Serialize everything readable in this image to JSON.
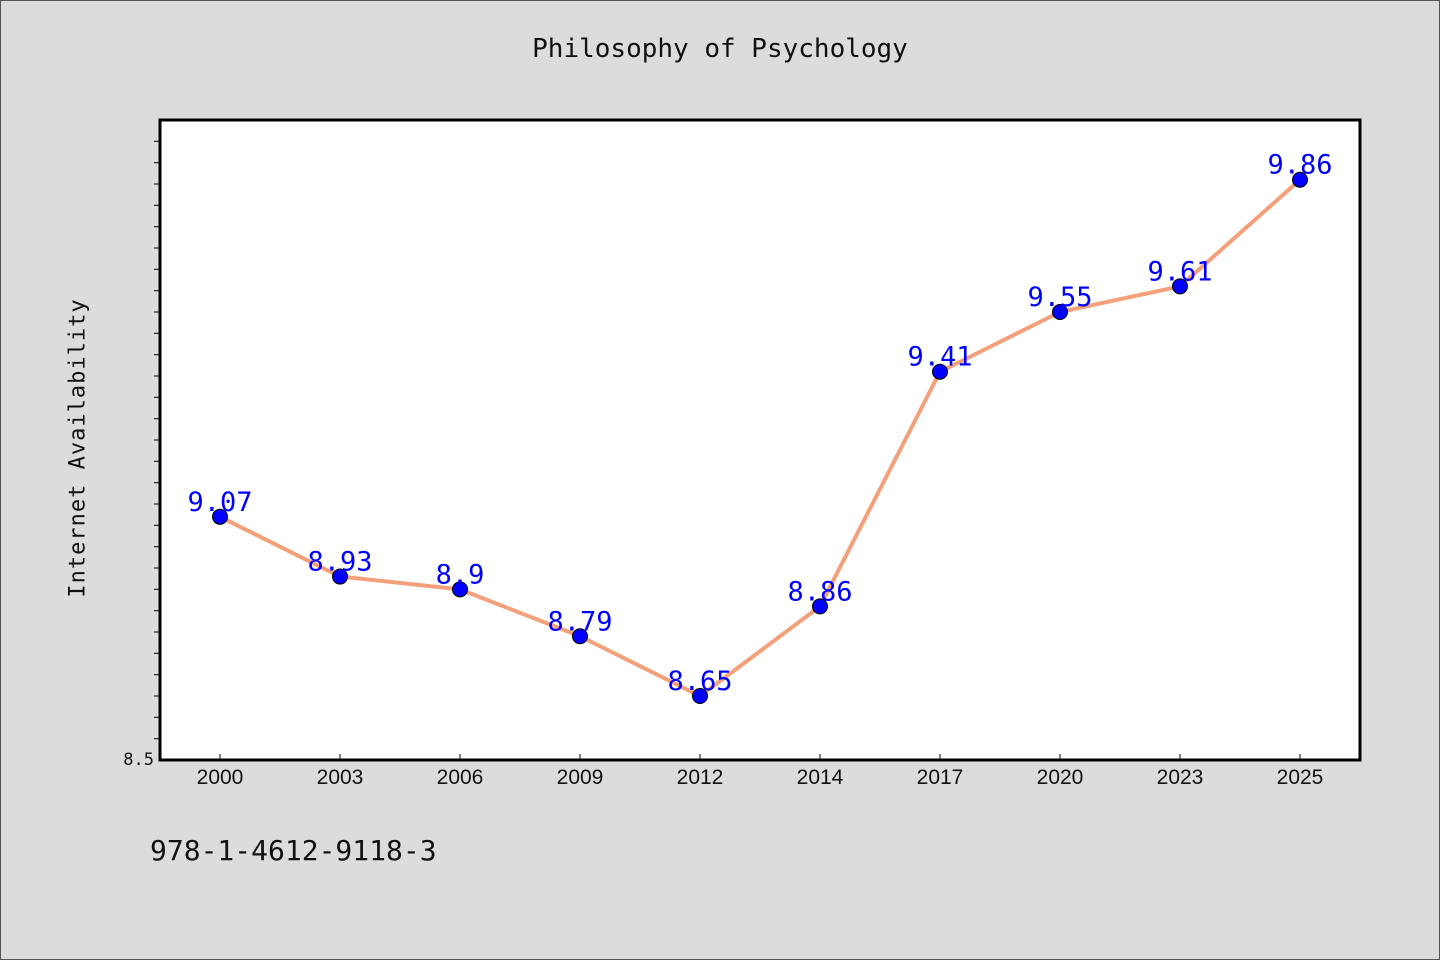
{
  "chart_data": {
    "type": "line",
    "title": "Philosophy of Psychology",
    "ylabel": "Internet Availability",
    "xlabel": "",
    "categories": [
      "2000",
      "2003",
      "2006",
      "2009",
      "2012",
      "2014",
      "2017",
      "2020",
      "2023",
      "2025"
    ],
    "series": [
      {
        "values": [
          9.07,
          8.93,
          8.9,
          8.79,
          8.65,
          8.86,
          9.41,
          9.55,
          9.61,
          9.86
        ]
      }
    ],
    "data_labels": [
      "9.07",
      "8.93",
      "8.9",
      "8.79",
      "8.65",
      "8.86",
      "9.41",
      "9.55",
      "9.61",
      "9.86"
    ],
    "ylim": [
      8.5,
      10.0
    ],
    "y_tick_labels": [
      "8.5"
    ],
    "grid": false,
    "colors": {
      "line": "#f4a07a",
      "marker": "#0000ff",
      "label": "#0000ff",
      "background": "#dcdcdc",
      "plot_background": "#ffffff"
    }
  },
  "footer": {
    "code": "978-1-4612-9118-3"
  }
}
